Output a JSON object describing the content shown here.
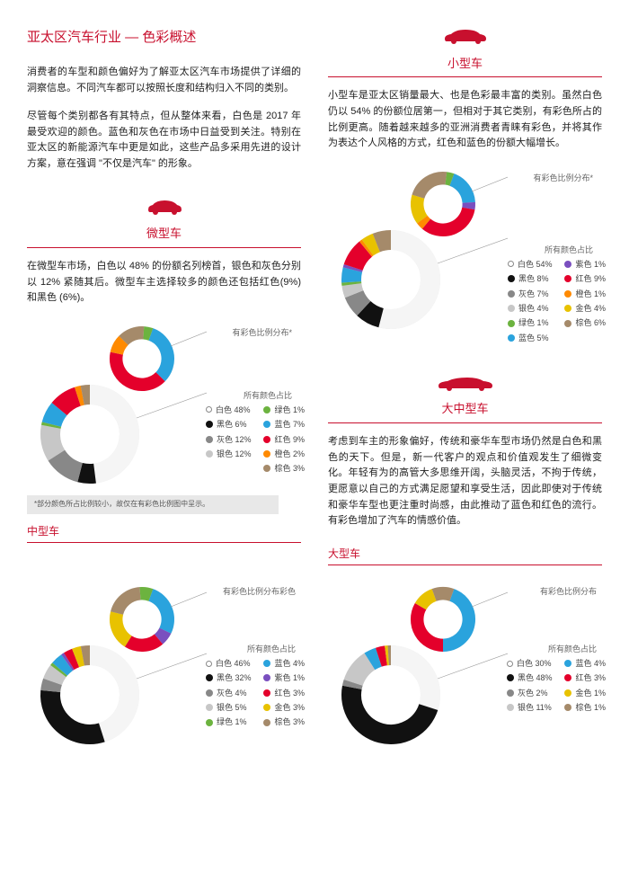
{
  "title": "亚太区汽车行业 — 色彩概述",
  "intro1": "消费者的车型和颜色偏好为了解亚太区汽车市场提供了详细的洞察信息。不同汽车都可以按照长度和结构归入不同的类别。",
  "intro2": "尽管每个类别都各有其特点，但从整体来看，白色是 2017 年最受欢迎的颜色。蓝色和灰色在市场中日益受到关注。特别在亚太区的新能源汽车中更是如此，这些产品多采用先进的设计方案，意在强调 \"不仅是汽车\" 的形象。",
  "compact": {
    "name": "小型车",
    "para": "小型车是亚太区销量最大、也是色彩最丰富的类别。虽然白色仍以 54% 的份额位居第一，但相对于其它类别，有彩色所占的比例更高。随着越来越多的亚洲消费者青睐有彩色，并将其作为表达个人风格的方式，红色和蓝色的份额大幅增长。",
    "chromatic_label": "有彩色比例分布*",
    "all_label": "所有颜色占比",
    "legend_l": [
      {
        "c": "hollow",
        "t": "白色 54%"
      },
      {
        "c": "#111",
        "t": "黑色 8%"
      },
      {
        "c": "#888",
        "t": "灰色 7%"
      },
      {
        "c": "#c7c7c7",
        "t": "银色 4%"
      },
      {
        "c": "#6cb33f",
        "t": "绿色 1%"
      },
      {
        "c": "#2aa3dd",
        "t": "蓝色 5%"
      }
    ],
    "legend_r": [
      {
        "c": "#7a4fbf",
        "t": "紫色 1%"
      },
      {
        "c": "#e4002b",
        "t": "红色 9%"
      },
      {
        "c": "#ff8a00",
        "t": "橙色 1%"
      },
      {
        "c": "#e8c200",
        "t": "金色 4%"
      },
      {
        "c": "#a58a6a",
        "t": "棕色 6%"
      }
    ]
  },
  "micro": {
    "name": "微型车",
    "para": "在微型车市场，白色以 48% 的份额名列榜首，银色和灰色分别以 12% 紧随其后。微型车主选择较多的颜色还包括红色(9%) 和黑色 (6%)。",
    "chromatic_label": "有彩色比例分布*",
    "all_label": "所有颜色占比",
    "legend_l": [
      {
        "c": "hollow",
        "t": "白色 48%"
      },
      {
        "c": "#111",
        "t": "黑色 6%"
      },
      {
        "c": "#888",
        "t": "灰色 12%"
      },
      {
        "c": "#c7c7c7",
        "t": "银色 12%"
      }
    ],
    "legend_r": [
      {
        "c": "#6cb33f",
        "t": "绿色 1%"
      },
      {
        "c": "#2aa3dd",
        "t": "蓝色 7%"
      },
      {
        "c": "#e4002b",
        "t": "红色 9%"
      },
      {
        "c": "#ff8a00",
        "t": "橙色 2%"
      },
      {
        "c": "#a58a6a",
        "t": "棕色 3%"
      }
    ]
  },
  "large_mid_head": {
    "name": "大中型车"
  },
  "large_mid_para": "考虑到车主的形象偏好，传统和豪华车型市场仍然是白色和黑色的天下。但是，新一代客户的观点和价值观发生了细微变化。年轻有为的高管大多思维开阔，头脑灵活，不拘于传统，更愿意以自己的方式满足愿望和享受生活，因此即使对于传统和豪华车型也更注重时尚感，由此推动了蓝色和红色的流行。有彩色增加了汽车的情感价值。",
  "footnote": "*部分颜色所占比例较小，故仅在有彩色比例图中呈示。",
  "mid": {
    "name": "中型车",
    "chromatic_label": "有彩色比例分布彩色",
    "all_label": "所有颜色占比",
    "legend_l": [
      {
        "c": "hollow",
        "t": "白色 46%"
      },
      {
        "c": "#111",
        "t": "黑色 32%"
      },
      {
        "c": "#888",
        "t": "灰色 4%"
      },
      {
        "c": "#c7c7c7",
        "t": "银色 5%"
      },
      {
        "c": "#6cb33f",
        "t": "绿色 1%"
      }
    ],
    "legend_r": [
      {
        "c": "#2aa3dd",
        "t": "蓝色 4%"
      },
      {
        "c": "#7a4fbf",
        "t": "紫色 1%"
      },
      {
        "c": "#e4002b",
        "t": "红色 3%"
      },
      {
        "c": "#e8c200",
        "t": "金色 3%"
      },
      {
        "c": "#a58a6a",
        "t": "棕色 3%"
      }
    ]
  },
  "large": {
    "name": "大型车",
    "chromatic_label": "有彩色比例分布",
    "all_label": "所有颜色占比",
    "legend_l": [
      {
        "c": "hollow",
        "t": "白色 30%"
      },
      {
        "c": "#111",
        "t": "黑色 48%"
      },
      {
        "c": "#888",
        "t": "灰色 2%"
      },
      {
        "c": "#c7c7c7",
        "t": "银色 11%"
      }
    ],
    "legend_r": [
      {
        "c": "#2aa3dd",
        "t": "蓝色 4%"
      },
      {
        "c": "#e4002b",
        "t": "红色 3%"
      },
      {
        "c": "#e8c200",
        "t": "金色 1%"
      },
      {
        "c": "#a58a6a",
        "t": "棕色 1%"
      }
    ]
  },
  "colors": {
    "white": "#f5f5f5",
    "black": "#111",
    "grey": "#888",
    "silver": "#c7c7c7",
    "green": "#6cb33f",
    "blue": "#2aa3dd",
    "purple": "#7a4fbf",
    "red": "#e4002b",
    "orange": "#ff8a00",
    "gold": "#e8c200",
    "brown": "#a58a6a",
    "ring_bg": "#e3e3e3"
  },
  "donuts": {
    "compact_small": [
      {
        "c": "#2aa3dd",
        "v": 5
      },
      {
        "c": "#7a4fbf",
        "v": 1
      },
      {
        "c": "#e4002b",
        "v": 9
      },
      {
        "c": "#ff8a00",
        "v": 1
      },
      {
        "c": "#e8c200",
        "v": 4
      },
      {
        "c": "#a58a6a",
        "v": 6
      },
      {
        "c": "#6cb33f",
        "v": 1
      }
    ],
    "compact_big": [
      {
        "c": "#f5f5f5",
        "v": 54
      },
      {
        "c": "#111",
        "v": 8
      },
      {
        "c": "#888",
        "v": 7
      },
      {
        "c": "#c7c7c7",
        "v": 4
      },
      {
        "c": "#6cb33f",
        "v": 1
      },
      {
        "c": "#2aa3dd",
        "v": 5
      },
      {
        "c": "#7a4fbf",
        "v": 1
      },
      {
        "c": "#e4002b",
        "v": 9
      },
      {
        "c": "#ff8a00",
        "v": 1
      },
      {
        "c": "#e8c200",
        "v": 4
      },
      {
        "c": "#a58a6a",
        "v": 6
      }
    ],
    "micro_small": [
      {
        "c": "#2aa3dd",
        "v": 7
      },
      {
        "c": "#e4002b",
        "v": 9
      },
      {
        "c": "#ff8a00",
        "v": 2
      },
      {
        "c": "#a58a6a",
        "v": 3
      },
      {
        "c": "#6cb33f",
        "v": 1
      }
    ],
    "micro_big": [
      {
        "c": "#f5f5f5",
        "v": 48
      },
      {
        "c": "#111",
        "v": 6
      },
      {
        "c": "#888",
        "v": 12
      },
      {
        "c": "#c7c7c7",
        "v": 12
      },
      {
        "c": "#6cb33f",
        "v": 1
      },
      {
        "c": "#2aa3dd",
        "v": 7
      },
      {
        "c": "#e4002b",
        "v": 9
      },
      {
        "c": "#ff8a00",
        "v": 2
      },
      {
        "c": "#a58a6a",
        "v": 3
      }
    ],
    "mid_small": [
      {
        "c": "#2aa3dd",
        "v": 4
      },
      {
        "c": "#7a4fbf",
        "v": 1
      },
      {
        "c": "#e4002b",
        "v": 3
      },
      {
        "c": "#e8c200",
        "v": 3
      },
      {
        "c": "#a58a6a",
        "v": 3
      },
      {
        "c": "#6cb33f",
        "v": 1
      }
    ],
    "mid_big": [
      {
        "c": "#f5f5f5",
        "v": 46
      },
      {
        "c": "#111",
        "v": 32
      },
      {
        "c": "#888",
        "v": 4
      },
      {
        "c": "#c7c7c7",
        "v": 5
      },
      {
        "c": "#6cb33f",
        "v": 1
      },
      {
        "c": "#2aa3dd",
        "v": 4
      },
      {
        "c": "#7a4fbf",
        "v": 1
      },
      {
        "c": "#e4002b",
        "v": 3
      },
      {
        "c": "#e8c200",
        "v": 3
      },
      {
        "c": "#a58a6a",
        "v": 3
      }
    ],
    "large_small": [
      {
        "c": "#2aa3dd",
        "v": 4
      },
      {
        "c": "#e4002b",
        "v": 3
      },
      {
        "c": "#e8c200",
        "v": 1
      },
      {
        "c": "#a58a6a",
        "v": 1
      }
    ],
    "large_big": [
      {
        "c": "#f5f5f5",
        "v": 30
      },
      {
        "c": "#111",
        "v": 48
      },
      {
        "c": "#888",
        "v": 2
      },
      {
        "c": "#c7c7c7",
        "v": 11
      },
      {
        "c": "#2aa3dd",
        "v": 4
      },
      {
        "c": "#e4002b",
        "v": 3
      },
      {
        "c": "#e8c200",
        "v": 1
      },
      {
        "c": "#a58a6a",
        "v": 1
      }
    ]
  }
}
